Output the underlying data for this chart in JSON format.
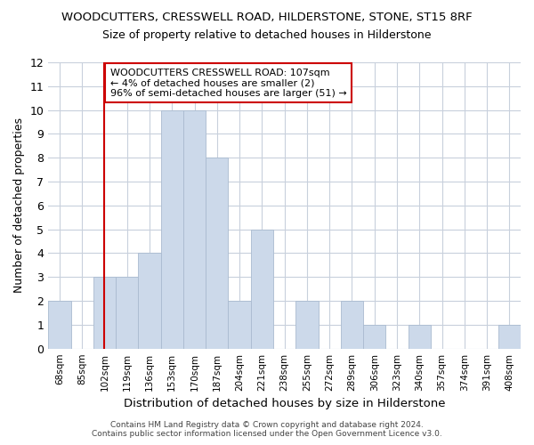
{
  "title": "WOODCUTTERS, CRESSWELL ROAD, HILDERSTONE, STONE, ST15 8RF",
  "subtitle": "Size of property relative to detached houses in Hilderstone",
  "xlabel": "Distribution of detached houses by size in Hilderstone",
  "ylabel": "Number of detached properties",
  "categories": [
    "68sqm",
    "85sqm",
    "102sqm",
    "119sqm",
    "136sqm",
    "153sqm",
    "170sqm",
    "187sqm",
    "204sqm",
    "221sqm",
    "238sqm",
    "255sqm",
    "272sqm",
    "289sqm",
    "306sqm",
    "323sqm",
    "340sqm",
    "357sqm",
    "374sqm",
    "391sqm",
    "408sqm"
  ],
  "values": [
    2,
    0,
    3,
    3,
    4,
    10,
    10,
    8,
    2,
    5,
    0,
    2,
    0,
    2,
    1,
    0,
    1,
    0,
    0,
    0,
    1
  ],
  "bar_color": "#ccd9ea",
  "bar_edge_color": "#aabbd0",
  "grid_color": "#c8d0dc",
  "ylim": [
    0,
    12
  ],
  "yticks": [
    0,
    1,
    2,
    3,
    4,
    5,
    6,
    7,
    8,
    9,
    10,
    11,
    12
  ],
  "vline_x_index": 2,
  "vline_color": "#cc0000",
  "annotation_text": "WOODCUTTERS CRESSWELL ROAD: 107sqm\n← 4% of detached houses are smaller (2)\n96% of semi-detached houses are larger (51) →",
  "annotation_box_color": "white",
  "annotation_box_edge": "#cc0000",
  "footer": "Contains HM Land Registry data © Crown copyright and database right 2024.\nContains public sector information licensed under the Open Government Licence v3.0.",
  "background_color": "#ffffff",
  "axes_background": "#ffffff"
}
